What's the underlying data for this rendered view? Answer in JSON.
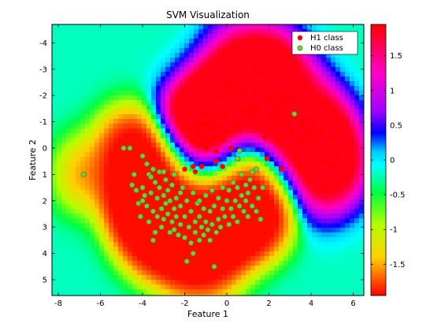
{
  "chart_data": {
    "type": "scatter",
    "title": "SVM Visualization",
    "xlabel": "Feature 1",
    "ylabel": "Feature 2",
    "xlim": [
      -8.3,
      6.5
    ],
    "ylim": [
      -4.7,
      5.6
    ],
    "y_axis_reversed": true,
    "x_ticks": [
      "-8",
      "-6",
      "-4",
      "-2",
      "0",
      "2",
      "4",
      "6"
    ],
    "y_ticks": [
      "-4",
      "-3",
      "-2",
      "-1",
      "0",
      "1",
      "2",
      "3",
      "4",
      "5"
    ],
    "background": "decision function heatmap (hsv colormap)",
    "grid": false,
    "legend_position": "top-right",
    "colorbar": {
      "range": [
        -1.95,
        1.95
      ],
      "ticks": [
        "1.5",
        "1",
        "0.5",
        "0",
        "-0.5",
        "-1",
        "-1.5"
      ]
    },
    "series": [
      {
        "name": "H1 class",
        "color": "#ff0000",
        "points": [
          [
            -2.0,
            0.8
          ],
          [
            -1.6,
            0.7
          ],
          [
            -1.5,
            0.9
          ],
          [
            -1.2,
            0.7
          ],
          [
            -0.5,
            0.5
          ],
          [
            -0.2,
            0.7
          ],
          [
            -1.9,
            -1.2
          ],
          [
            -1.8,
            -0.7
          ],
          [
            -1.6,
            -0.3
          ],
          [
            -1.5,
            -1.0
          ],
          [
            -1.4,
            -0.5
          ],
          [
            -1.3,
            -0.1
          ],
          [
            -1.2,
            -0.9
          ],
          [
            -1.1,
            -0.4
          ],
          [
            -1.0,
            0.0
          ],
          [
            -1.0,
            -1.3
          ],
          [
            -0.9,
            -0.7
          ],
          [
            -0.8,
            -0.2
          ],
          [
            -0.7,
            -1.0
          ],
          [
            -0.6,
            -0.5
          ],
          [
            -0.5,
            0.1
          ],
          [
            -0.4,
            -1.5
          ],
          [
            -0.3,
            -0.8
          ],
          [
            -0.2,
            -0.3
          ],
          [
            -0.1,
            -1.2
          ],
          [
            0.0,
            -0.6
          ],
          [
            0.2,
            0.0
          ],
          [
            0.3,
            -0.9
          ],
          [
            -1.3,
            -0.7
          ],
          [
            -1.0,
            -0.9
          ],
          [
            -0.7,
            -0.3
          ],
          [
            -0.9,
            -1.6
          ],
          [
            -0.6,
            -1.3
          ],
          [
            -0.3,
            -1.9
          ],
          [
            -0.2,
            -2.3
          ],
          [
            0.0,
            -2.5
          ],
          [
            0.2,
            -2.0
          ],
          [
            0.3,
            -1.7
          ],
          [
            0.5,
            -2.3
          ],
          [
            0.7,
            -1.4
          ],
          [
            0.8,
            -2.1
          ],
          [
            0.9,
            -1.8
          ],
          [
            1.0,
            -2.6
          ],
          [
            1.1,
            -1.5
          ],
          [
            1.3,
            -2.2
          ],
          [
            1.4,
            -1.6
          ],
          [
            1.5,
            -2.8
          ],
          [
            1.6,
            -1.3
          ],
          [
            1.7,
            -2.4
          ],
          [
            1.8,
            -1.0
          ],
          [
            2.0,
            -1.9
          ],
          [
            2.1,
            -1.3
          ],
          [
            2.2,
            -2.2
          ],
          [
            2.3,
            -0.8
          ],
          [
            2.4,
            -1.6
          ],
          [
            2.5,
            -1.2
          ],
          [
            2.6,
            -2.1
          ],
          [
            2.7,
            -0.5
          ],
          [
            2.8,
            -1.4
          ],
          [
            2.9,
            -1.0
          ],
          [
            3.0,
            -1.8
          ],
          [
            3.1,
            -0.6
          ],
          [
            3.2,
            -1.3
          ],
          [
            3.3,
            -2.0
          ],
          [
            3.4,
            -0.3
          ],
          [
            3.5,
            -1.0
          ],
          [
            3.6,
            -0.8
          ],
          [
            3.8,
            -0.6
          ],
          [
            3.9,
            -1.1
          ],
          [
            4.0,
            -0.2
          ],
          [
            4.1,
            -0.9
          ],
          [
            4.3,
            -0.5
          ],
          [
            4.4,
            0.1
          ],
          [
            4.5,
            -0.7
          ],
          [
            4.6,
            0.5
          ],
          [
            4.8,
            0.0
          ],
          [
            4.9,
            -0.4
          ],
          [
            5.0,
            0.7
          ],
          [
            5.2,
            0.3
          ],
          [
            5.4,
            0.9
          ],
          [
            4.6,
            1.5
          ],
          [
            3.5,
            0.7
          ],
          [
            2.6,
            0.8
          ],
          [
            1.9,
            0.4
          ],
          [
            1.8,
            -0.4
          ],
          [
            2.3,
            -0.3
          ],
          [
            1.3,
            -3.0
          ],
          [
            0.4,
            -3.8
          ],
          [
            1.9,
            -3.5
          ],
          [
            2.5,
            -3.2
          ],
          [
            2.0,
            -2.7
          ],
          [
            2.7,
            -1.8
          ],
          [
            1.2,
            -1.2
          ],
          [
            0.5,
            -1.0
          ]
        ]
      },
      {
        "name": "H0 class",
        "color": "#77cc33",
        "points": [
          [
            -6.8,
            1.0
          ],
          [
            -4.9,
            0.0
          ],
          [
            -4.6,
            0.0
          ],
          [
            -4.5,
            1.4
          ],
          [
            -4.3,
            1.6
          ],
          [
            -4.2,
            2.1
          ],
          [
            -4.1,
            2.6
          ],
          [
            -4.0,
            0.3
          ],
          [
            -4.0,
            1.5
          ],
          [
            -3.9,
            1.8
          ],
          [
            -3.8,
            0.6
          ],
          [
            -3.8,
            2.2
          ],
          [
            -3.7,
            1.0
          ],
          [
            -3.7,
            2.8
          ],
          [
            -3.6,
            1.7
          ],
          [
            -3.5,
            0.8
          ],
          [
            -3.5,
            2.4
          ],
          [
            -3.5,
            3.5
          ],
          [
            -3.4,
            1.3
          ],
          [
            -3.4,
            3.2
          ],
          [
            -3.3,
            1.9
          ],
          [
            -3.3,
            2.6
          ],
          [
            -3.2,
            1.5
          ],
          [
            -3.2,
            0.9
          ],
          [
            -3.1,
            2.3
          ],
          [
            -3.1,
            3.0
          ],
          [
            -3.0,
            1.8
          ],
          [
            -3.0,
            2.7
          ],
          [
            -2.9,
            1.2
          ],
          [
            -2.9,
            2.1
          ],
          [
            -2.8,
            2.5
          ],
          [
            -2.8,
            1.6
          ],
          [
            -2.7,
            3.2
          ],
          [
            -2.7,
            2.0
          ],
          [
            -2.6,
            2.8
          ],
          [
            -2.6,
            1.4
          ],
          [
            -2.5,
            2.3
          ],
          [
            -2.5,
            3.1
          ],
          [
            -2.4,
            1.9
          ],
          [
            -2.4,
            2.6
          ],
          [
            -2.3,
            3.3
          ],
          [
            -2.2,
            2.2
          ],
          [
            -2.2,
            2.9
          ],
          [
            -2.1,
            1.5
          ],
          [
            -2.0,
            2.6
          ],
          [
            -2.0,
            3.4
          ],
          [
            -1.9,
            2.0
          ],
          [
            -1.9,
            4.3
          ],
          [
            -1.8,
            3.0
          ],
          [
            -1.7,
            2.4
          ],
          [
            -1.7,
            3.6
          ],
          [
            -1.6,
            1.7
          ],
          [
            -1.5,
            2.8
          ],
          [
            -1.5,
            3.2
          ],
          [
            -1.4,
            2.1
          ],
          [
            -1.3,
            3.5
          ],
          [
            -1.3,
            2.6
          ],
          [
            -1.2,
            3.0
          ],
          [
            -1.1,
            2.3
          ],
          [
            -1.1,
            3.3
          ],
          [
            -1.0,
            1.8
          ],
          [
            -1.0,
            2.8
          ],
          [
            -0.9,
            3.1
          ],
          [
            -0.8,
            2.4
          ],
          [
            -0.8,
            3.5
          ],
          [
            -0.7,
            1.6
          ],
          [
            -0.7,
            2.9
          ],
          [
            -0.6,
            2.2
          ],
          [
            -0.6,
            4.5
          ],
          [
            -0.5,
            3.2
          ],
          [
            -0.4,
            1.9
          ],
          [
            -0.4,
            2.7
          ],
          [
            -0.3,
            3.0
          ],
          [
            -0.2,
            2.3
          ],
          [
            -0.2,
            1.5
          ],
          [
            -0.1,
            2.6
          ],
          [
            0.0,
            2.0
          ],
          [
            0.1,
            1.6
          ],
          [
            0.1,
            2.9
          ],
          [
            0.2,
            2.3
          ],
          [
            0.3,
            1.3
          ],
          [
            0.3,
            2.6
          ],
          [
            0.4,
            2.0
          ],
          [
            0.5,
            1.5
          ],
          [
            0.5,
            2.8
          ],
          [
            0.6,
            2.2
          ],
          [
            0.7,
            1.0
          ],
          [
            0.7,
            1.8
          ],
          [
            0.8,
            2.4
          ],
          [
            0.9,
            1.4
          ],
          [
            0.9,
            2.0
          ],
          [
            1.0,
            1.7
          ],
          [
            1.0,
            2.6
          ],
          [
            1.1,
            1.2
          ],
          [
            1.2,
            2.2
          ],
          [
            1.3,
            1.5
          ],
          [
            1.4,
            0.8
          ],
          [
            1.5,
            1.9
          ],
          [
            1.6,
            2.7
          ],
          [
            1.7,
            1.5
          ],
          [
            1.4,
            2.4
          ],
          [
            1.2,
            0.9
          ],
          [
            0.6,
            0.1
          ],
          [
            0.5,
            0.4
          ],
          [
            3.2,
            -1.3
          ],
          [
            -2.2,
            1.7
          ],
          [
            -3.6,
            1.1
          ],
          [
            -4.4,
            1.0
          ],
          [
            -4.0,
            2.0
          ],
          [
            -2.5,
            1.0
          ],
          [
            -1.6,
            4.0
          ],
          [
            -3.0,
            0.9
          ],
          [
            -1.3,
            2.0
          ]
        ]
      }
    ]
  }
}
